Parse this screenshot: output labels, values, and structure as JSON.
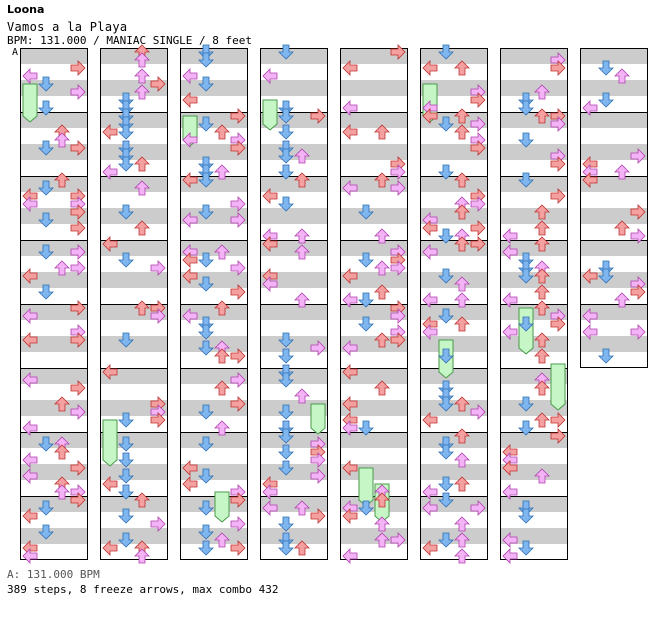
{
  "header": {
    "artist": "Loona",
    "title": "Vamos a la Playa",
    "meta": "BPM: 131.000 / MANIAC SINGLE / 8 feet",
    "bpm_marker": "A"
  },
  "footer": {
    "bpm_legend": "A: 131.000 BPM",
    "stats": "389 steps, 8 freeze arrows, max combo 432"
  },
  "colors": {
    "stripe": "#cccccc",
    "line": "#000000",
    "left": "#f4a0a0",
    "down": "#7fb6ef",
    "up": "#f4a0a0",
    "right": "#f4a0a0",
    "pink": "#f4b3f4",
    "freeze": "#c6f5c6"
  },
  "columns": [
    {
      "id": 1,
      "measures": 8
    },
    {
      "id": 2,
      "measures": 8
    },
    {
      "id": 3,
      "measures": 8
    },
    {
      "id": 4,
      "measures": 8
    },
    {
      "id": 5,
      "measures": 8
    },
    {
      "id": 6,
      "measures": 8
    },
    {
      "id": 7,
      "measures": 8
    },
    {
      "id": 8,
      "measures": 5
    }
  ]
}
